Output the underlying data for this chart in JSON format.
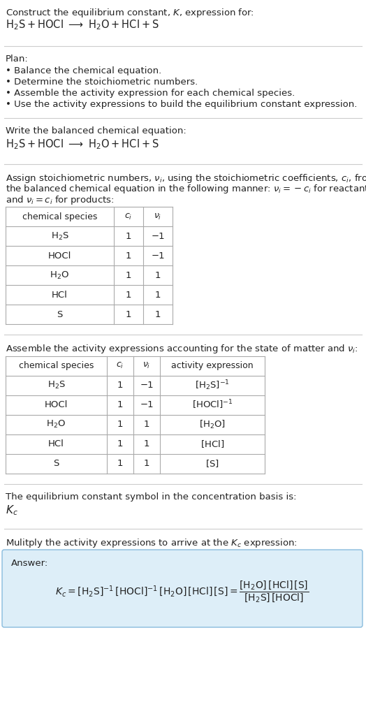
{
  "bg_color": "#ffffff",
  "text_color": "#222222",
  "table_line_color": "#aaaaaa",
  "answer_bg": "#ddeef8",
  "answer_border": "#88bbdd",
  "fig_w": 5.24,
  "fig_h": 10.05,
  "dpi": 100,
  "sections": {
    "title": {
      "line1": "Construct the equilibrium constant, $K$, expression for:",
      "line2_plain": "H₂S + HOCl ⟶ H₂O + HCl + S"
    },
    "plan": {
      "header": "Plan:",
      "items": [
        "• Balance the chemical equation.",
        "• Determine the stoichiometric numbers.",
        "• Assemble the activity expression for each chemical species.",
        "• Use the activity expressions to build the equilibrium constant expression."
      ]
    },
    "balanced": {
      "header": "Write the balanced chemical equation:",
      "eq_plain": "H₂S + HOCl ⟶ H₂O + HCl + S"
    },
    "stoich": {
      "line1": "Assign stoichiometric numbers, $\\nu_i$, using the stoichiometric coefficients, $c_i$, from",
      "line2": "the balanced chemical equation in the following manner: $\\nu_i = -c_i$ for reactants",
      "line3": "and $\\nu_i = c_i$ for products:",
      "col_headers": [
        "chemical species",
        "$c_i$",
        "$\\nu_i$"
      ],
      "rows": [
        [
          "H₂S",
          "1",
          "−1"
        ],
        [
          "HOCl",
          "1",
          "−1"
        ],
        [
          "H₂O",
          "1",
          "1"
        ],
        [
          "HCl",
          "1",
          "1"
        ],
        [
          "S",
          "1",
          "1"
        ]
      ]
    },
    "activity": {
      "header": "Assemble the activity expressions accounting for the state of matter and $\\nu_i$:",
      "col_headers": [
        "chemical species",
        "$c_i$",
        "$\\nu_i$",
        "activity expression"
      ],
      "rows": [
        [
          "H₂S",
          "1",
          "−1",
          "$[\\mathrm{H_2S}]^{-1}$"
        ],
        [
          "HOCl",
          "1",
          "−1",
          "$[\\mathrm{HOCl}]^{-1}$"
        ],
        [
          "H₂O",
          "1",
          "1",
          "$[\\mathrm{H_2O}]$"
        ],
        [
          "HCl",
          "1",
          "1",
          "$[\\mathrm{HCl}]$"
        ],
        [
          "S",
          "1",
          "1",
          "$[\\mathrm{S}]$"
        ]
      ]
    },
    "kc": {
      "header": "The equilibrium constant symbol in the concentration basis is:",
      "symbol": "$K_c$"
    },
    "multiply": {
      "header": "Mulitply the activity expressions to arrive at the $K_c$ expression:",
      "answer_label": "Answer:",
      "answer_eq": "$K_c = [\\mathrm{H_2S}]^{-1}\\,[\\mathrm{HOCl}]^{-1}\\,[\\mathrm{H_2O}]\\,[\\mathrm{HCl}]\\,[\\mathrm{S}] = \\dfrac{[\\mathrm{H_2O}]\\,[\\mathrm{HCl}]\\,[\\mathrm{S}]}{[\\mathrm{H_2S}]\\,[\\mathrm{HOCl}]}$"
    }
  }
}
